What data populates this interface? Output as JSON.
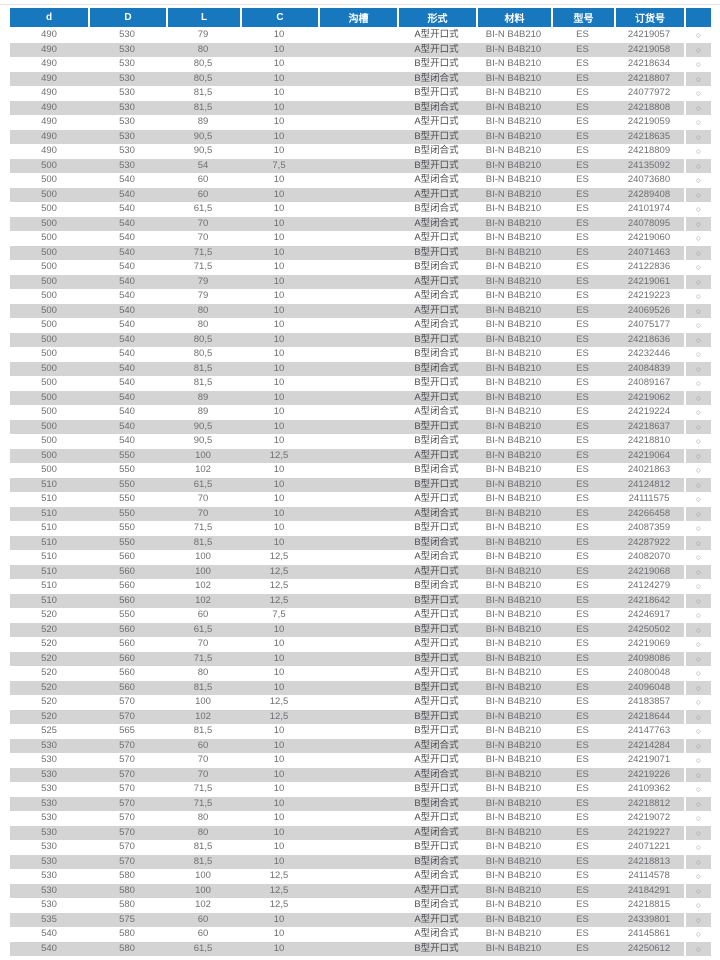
{
  "table": {
    "columns": [
      {
        "label": "d"
      },
      {
        "label": "D"
      },
      {
        "label": "L"
      },
      {
        "label": "C"
      },
      {
        "label": "沟槽"
      },
      {
        "label": "形式"
      },
      {
        "label": "材料"
      },
      {
        "label": "型号"
      },
      {
        "label": "订货号"
      },
      {
        "label": ""
      }
    ],
    "constants": {
      "groove": "",
      "material": "BI-N B4B210",
      "model": "ES",
      "availability_symbol": "○"
    },
    "colors": {
      "header_bg": "#1878be",
      "header_text": "#ffffff",
      "stripe": "#d4d4d5",
      "row_text": "#6e6f71",
      "form_text": "#4c4d4f",
      "symbol": "#8f9092"
    },
    "rows": [
      [
        "490",
        "530",
        "79",
        "10",
        "A型开口式",
        "24219057"
      ],
      [
        "490",
        "530",
        "80",
        "10",
        "A型开口式",
        "24219058"
      ],
      [
        "490",
        "530",
        "80,5",
        "10",
        "B型开口式",
        "24218634"
      ],
      [
        "490",
        "530",
        "80,5",
        "10",
        "B型闭合式",
        "24218807"
      ],
      [
        "490",
        "530",
        "81,5",
        "10",
        "B型开口式",
        "24077972"
      ],
      [
        "490",
        "530",
        "81,5",
        "10",
        "B型闭合式",
        "24218808"
      ],
      [
        "490",
        "530",
        "89",
        "10",
        "A型开口式",
        "24219059"
      ],
      [
        "490",
        "530",
        "90,5",
        "10",
        "B型开口式",
        "24218635"
      ],
      [
        "490",
        "530",
        "90,5",
        "10",
        "B型闭合式",
        "24218809"
      ],
      [
        "500",
        "530",
        "54",
        "7,5",
        "B型开口式",
        "24135092"
      ],
      [
        "500",
        "540",
        "60",
        "10",
        "A型闭合式",
        "24073680"
      ],
      [
        "500",
        "540",
        "60",
        "10",
        "A型开口式",
        "24289408"
      ],
      [
        "500",
        "540",
        "61,5",
        "10",
        "B型闭合式",
        "24101974"
      ],
      [
        "500",
        "540",
        "70",
        "10",
        "A型闭合式",
        "24078095"
      ],
      [
        "500",
        "540",
        "70",
        "10",
        "A型开口式",
        "24219060"
      ],
      [
        "500",
        "540",
        "71,5",
        "10",
        "B型开口式",
        "24071463"
      ],
      [
        "500",
        "540",
        "71,5",
        "10",
        "B型闭合式",
        "24122836"
      ],
      [
        "500",
        "540",
        "79",
        "10",
        "A型开口式",
        "24219061"
      ],
      [
        "500",
        "540",
        "79",
        "10",
        "A型闭合式",
        "24219223"
      ],
      [
        "500",
        "540",
        "80",
        "10",
        "A型开口式",
        "24069526"
      ],
      [
        "500",
        "540",
        "80",
        "10",
        "A型闭合式",
        "24075177"
      ],
      [
        "500",
        "540",
        "80,5",
        "10",
        "B型开口式",
        "24218636"
      ],
      [
        "500",
        "540",
        "80,5",
        "10",
        "B型闭合式",
        "24232446"
      ],
      [
        "500",
        "540",
        "81,5",
        "10",
        "B型闭合式",
        "24084839"
      ],
      [
        "500",
        "540",
        "81,5",
        "10",
        "B型开口式",
        "24089167"
      ],
      [
        "500",
        "540",
        "89",
        "10",
        "A型开口式",
        "24219062"
      ],
      [
        "500",
        "540",
        "89",
        "10",
        "A型闭合式",
        "24219224"
      ],
      [
        "500",
        "540",
        "90,5",
        "10",
        "B型开口式",
        "24218637"
      ],
      [
        "500",
        "540",
        "90,5",
        "10",
        "B型闭合式",
        "24218810"
      ],
      [
        "500",
        "550",
        "100",
        "12,5",
        "A型开口式",
        "24219064"
      ],
      [
        "500",
        "550",
        "102",
        "10",
        "B型闭合式",
        "24021863"
      ],
      [
        "510",
        "550",
        "61,5",
        "10",
        "B型开口式",
        "24124812"
      ],
      [
        "510",
        "550",
        "70",
        "10",
        "A型开口式",
        "24111575"
      ],
      [
        "510",
        "550",
        "70",
        "10",
        "A型闭合式",
        "24266458"
      ],
      [
        "510",
        "550",
        "71,5",
        "10",
        "B型开口式",
        "24087359"
      ],
      [
        "510",
        "550",
        "81,5",
        "10",
        "B型闭合式",
        "24287922"
      ],
      [
        "510",
        "560",
        "100",
        "12,5",
        "A型闭合式",
        "24082070"
      ],
      [
        "510",
        "560",
        "100",
        "12,5",
        "A型开口式",
        "24219068"
      ],
      [
        "510",
        "560",
        "102",
        "12,5",
        "B型闭合式",
        "24124279"
      ],
      [
        "510",
        "560",
        "102",
        "12,5",
        "B型开口式",
        "24218642"
      ],
      [
        "520",
        "550",
        "60",
        "7,5",
        "A型开口式",
        "24246917"
      ],
      [
        "520",
        "560",
        "61,5",
        "10",
        "B型开口式",
        "24250502"
      ],
      [
        "520",
        "560",
        "70",
        "10",
        "A型开口式",
        "24219069"
      ],
      [
        "520",
        "560",
        "71,5",
        "10",
        "B型开口式",
        "24098086"
      ],
      [
        "520",
        "560",
        "80",
        "10",
        "A型开口式",
        "24080048"
      ],
      [
        "520",
        "560",
        "81,5",
        "10",
        "B型开口式",
        "24096048"
      ],
      [
        "520",
        "570",
        "100",
        "12,5",
        "A型开口式",
        "24183857"
      ],
      [
        "520",
        "570",
        "102",
        "12,5",
        "B型开口式",
        "24218644"
      ],
      [
        "525",
        "565",
        "81,5",
        "10",
        "B型开口式",
        "24147763"
      ],
      [
        "530",
        "570",
        "60",
        "10",
        "A型闭合式",
        "24214284"
      ],
      [
        "530",
        "570",
        "70",
        "10",
        "A型开口式",
        "24219071"
      ],
      [
        "530",
        "570",
        "70",
        "10",
        "A型闭合式",
        "24219226"
      ],
      [
        "530",
        "570",
        "71,5",
        "10",
        "B型开口式",
        "24109362"
      ],
      [
        "530",
        "570",
        "71,5",
        "10",
        "B型闭合式",
        "24218812"
      ],
      [
        "530",
        "570",
        "80",
        "10",
        "A型开口式",
        "24219072"
      ],
      [
        "530",
        "570",
        "80",
        "10",
        "A型闭合式",
        "24219227"
      ],
      [
        "530",
        "570",
        "81,5",
        "10",
        "B型开口式",
        "24071221"
      ],
      [
        "530",
        "570",
        "81,5",
        "10",
        "B型闭合式",
        "24218813"
      ],
      [
        "530",
        "580",
        "100",
        "12,5",
        "A型闭合式",
        "24114578"
      ],
      [
        "530",
        "580",
        "100",
        "12,5",
        "A型开口式",
        "24184291"
      ],
      [
        "530",
        "580",
        "102",
        "12,5",
        "B型闭合式",
        "24218815"
      ],
      [
        "535",
        "575",
        "60",
        "10",
        "A型开口式",
        "24339801"
      ],
      [
        "540",
        "580",
        "60",
        "10",
        "A型闭合式",
        "24145861"
      ],
      [
        "540",
        "580",
        "61,5",
        "10",
        "B型开口式",
        "24250612"
      ]
    ]
  }
}
